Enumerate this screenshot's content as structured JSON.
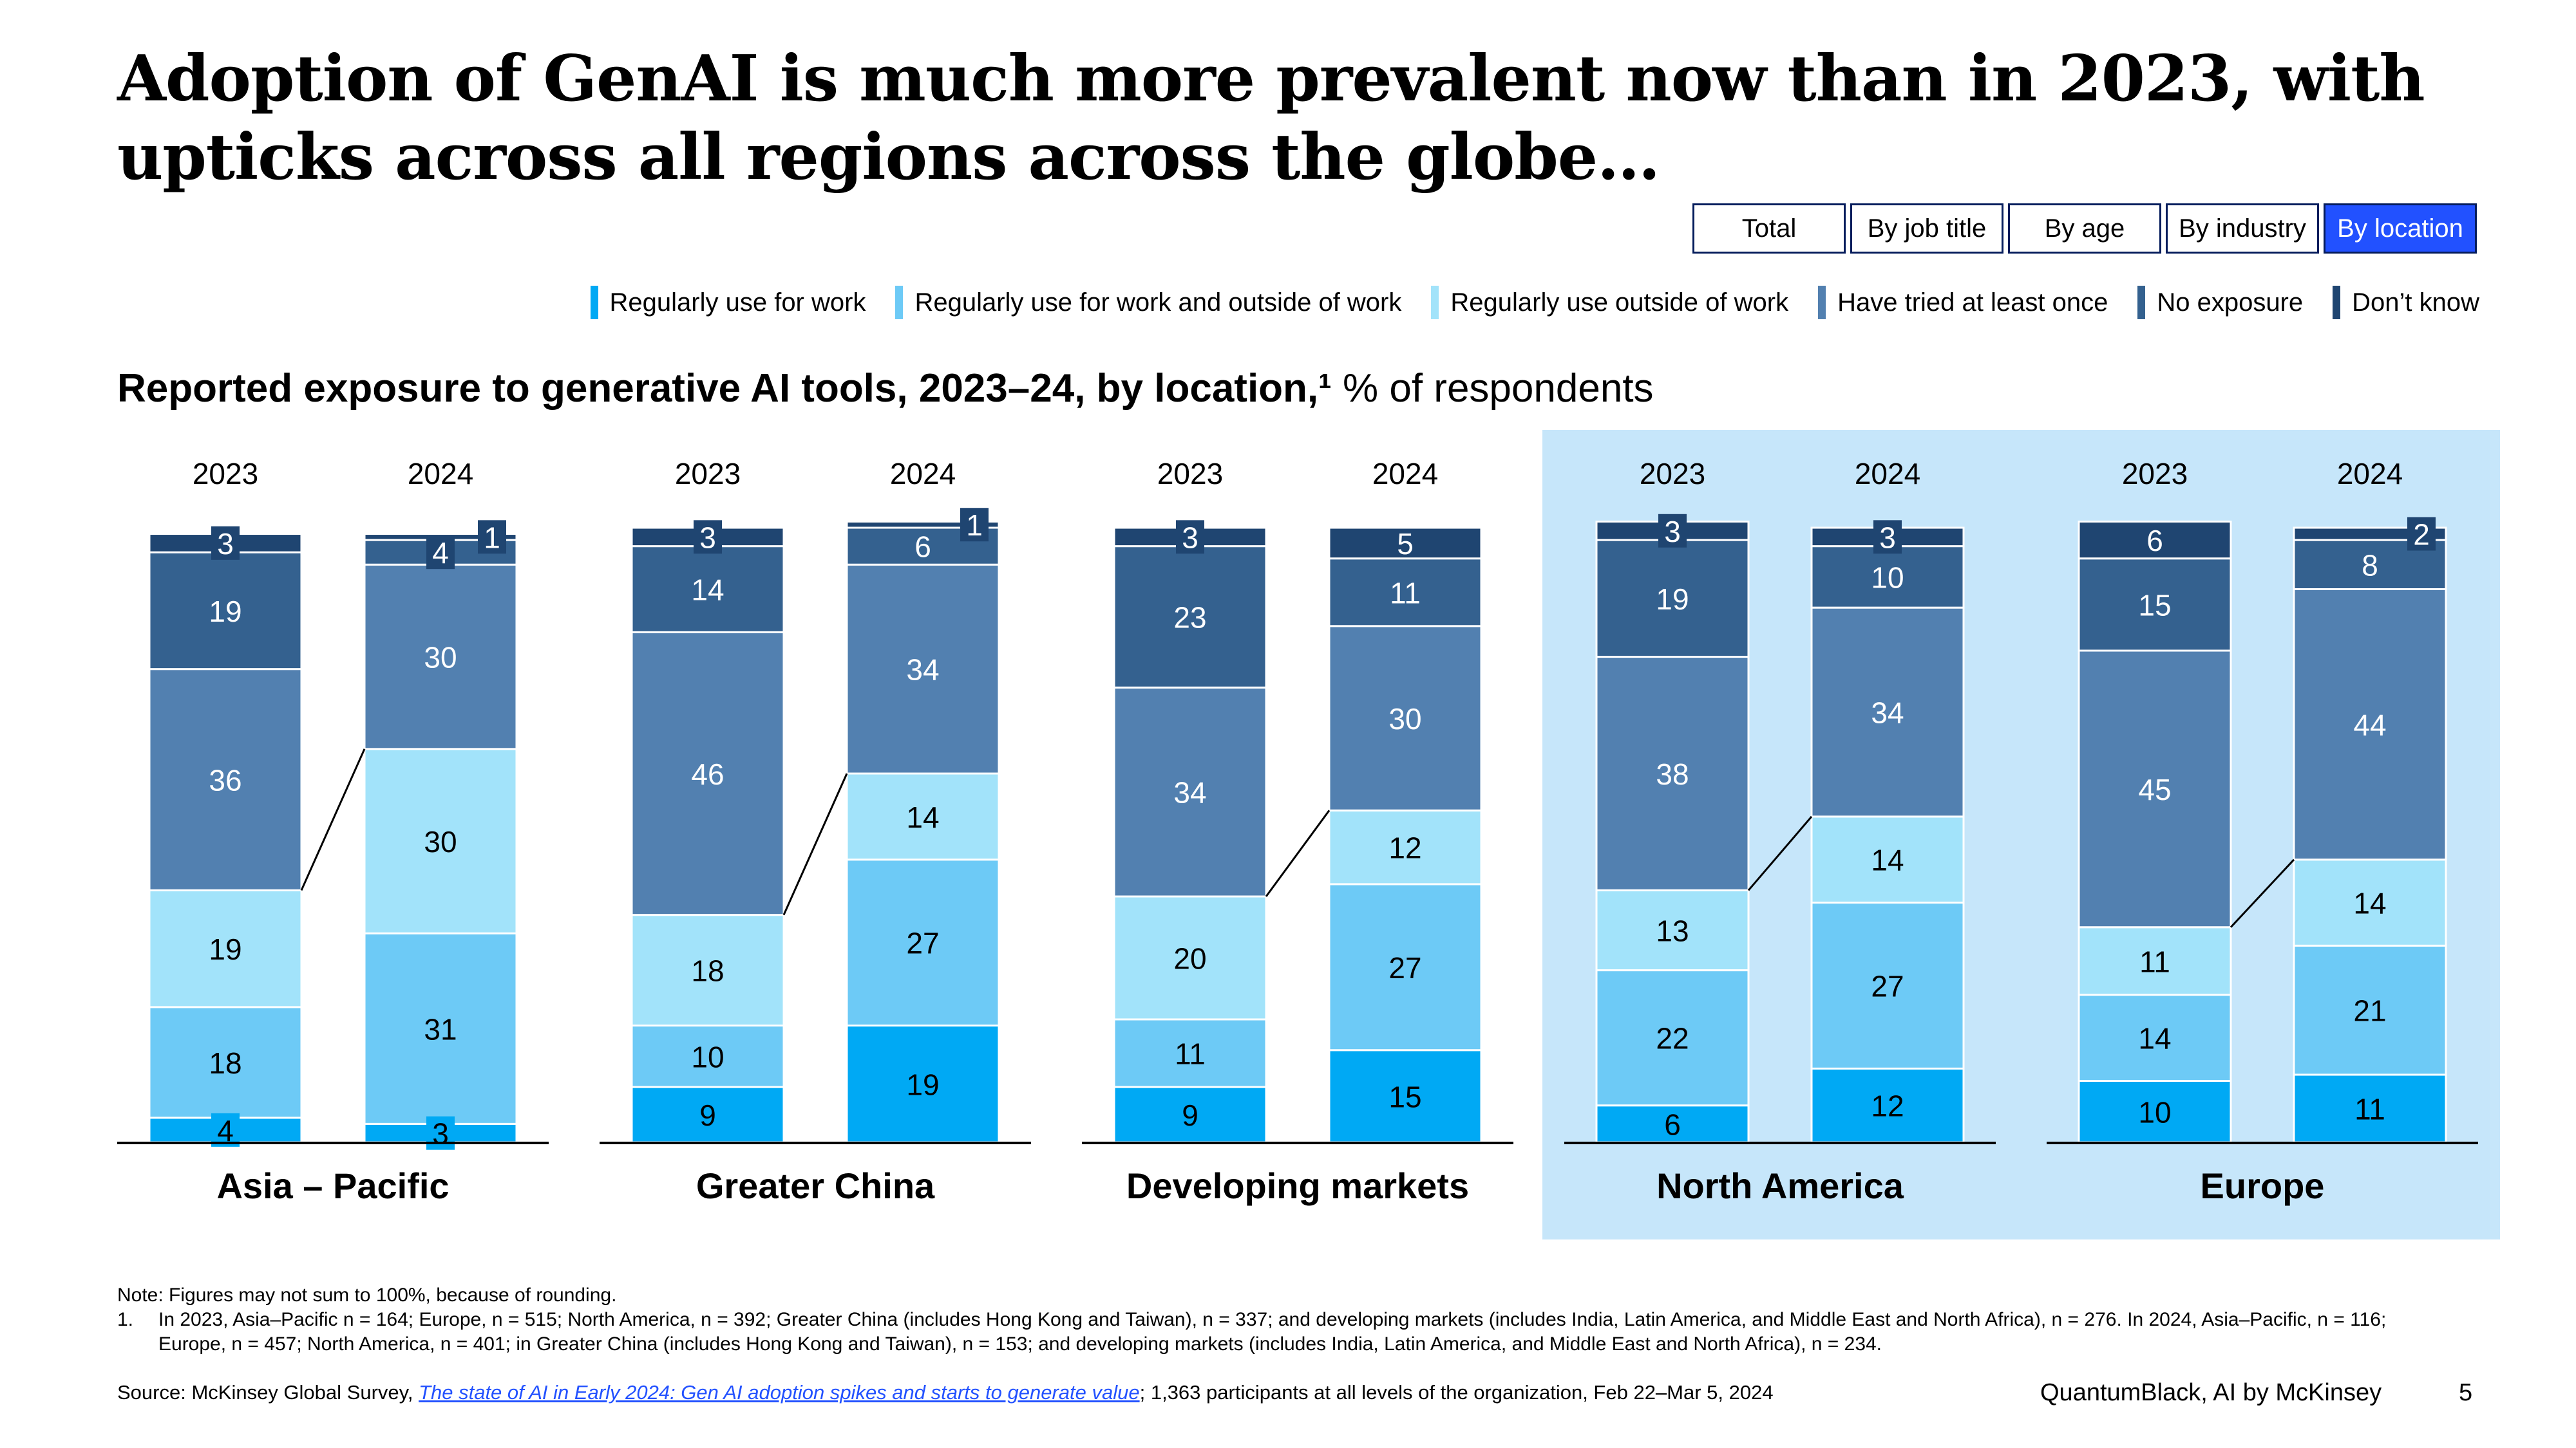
{
  "title": "Adoption of GenAI is much more prevalent now than in 2023, with upticks across all regions across the globe…",
  "filters": [
    {
      "label": "Total",
      "active": false
    },
    {
      "label": "By job title",
      "active": false
    },
    {
      "label": "By age",
      "active": false
    },
    {
      "label": "By industry",
      "active": false
    },
    {
      "label": "By location",
      "active": true
    }
  ],
  "legend": [
    {
      "label": "Regularly use for work",
      "color": "#00a9f4"
    },
    {
      "label": "Regularly use for work and outside of work",
      "color": "#6dcaf6"
    },
    {
      "label": "Regularly use outside of work",
      "color": "#a2e3fa"
    },
    {
      "label": "Have tried at least once",
      "color": "#5280b0"
    },
    {
      "label": "No exposure",
      "color": "#34618f"
    },
    {
      "label": "Don’t know",
      "color": "#1f4571"
    }
  ],
  "subtitle": {
    "bold": "Reported exposure to generative AI tools, 2023–24, by location,¹",
    "normal": " % of respondents"
  },
  "chart_data": {
    "type": "bar",
    "stacked": true,
    "title": "Reported exposure to generative AI tools, 2023–24, by location",
    "unit": "% of respondents",
    "series_names": [
      "Regularly use for work",
      "Regularly use for work and outside of work",
      "Regularly use outside of work",
      "Have tried at least once",
      "No exposure",
      "Don’t know"
    ],
    "groups": [
      {
        "region": "Asia – Pacific",
        "highlight": false,
        "bars": [
          {
            "year": "2023",
            "values": [
              4,
              18,
              19,
              36,
              19,
              3
            ]
          },
          {
            "year": "2024",
            "values": [
              3,
              31,
              30,
              30,
              4,
              1
            ]
          }
        ]
      },
      {
        "region": "Greater China",
        "highlight": false,
        "bars": [
          {
            "year": "2023",
            "values": [
              9,
              10,
              18,
              46,
              14,
              3
            ]
          },
          {
            "year": "2024",
            "values": [
              19,
              27,
              14,
              34,
              6,
              1
            ]
          }
        ]
      },
      {
        "region": "Developing markets",
        "highlight": false,
        "bars": [
          {
            "year": "2023",
            "values": [
              9,
              11,
              20,
              34,
              23,
              3
            ]
          },
          {
            "year": "2024",
            "values": [
              15,
              27,
              12,
              30,
              11,
              5
            ]
          }
        ]
      },
      {
        "region": "North America",
        "highlight": true,
        "bars": [
          {
            "year": "2023",
            "values": [
              6,
              22,
              13,
              38,
              19,
              3
            ]
          },
          {
            "year": "2024",
            "values": [
              12,
              27,
              14,
              34,
              10,
              3
            ]
          }
        ]
      },
      {
        "region": "Europe",
        "highlight": true,
        "bars": [
          {
            "year": "2023",
            "values": [
              10,
              14,
              11,
              45,
              15,
              6
            ]
          },
          {
            "year": "2024",
            "values": [
              11,
              21,
              14,
              44,
              8,
              2
            ]
          }
        ]
      }
    ]
  },
  "note": {
    "line1": "Note: Figures may not sum to 100%, because of rounding.",
    "fn_num": "1.",
    "fn_text": "In 2023, Asia–Pacific n = 164; Europe, n = 515; North America, n = 392; Greater China (includes Hong Kong and Taiwan), n = 337; and developing markets (includes India, Latin America, and Middle East and North Africa), n = 276. In 2024, Asia–Pacific, n = 116; Europe, n = 457; North America, n = 401; in Greater  China (includes Hong Kong and Taiwan), n = 153; and developing markets (includes India, Latin America, and Middle East and North Africa), n = 234."
  },
  "source": {
    "prefix": "Source: McKinsey Global Survey, ",
    "link": "The state of AI in Early 2024: Gen AI adoption spikes and starts to generate value",
    "suffix": "; 1,363 participants at all levels of the organization, Feb 22–Mar 5, 2024"
  },
  "brand": "QuantumBlack, AI by McKinsey",
  "page_number": "5"
}
